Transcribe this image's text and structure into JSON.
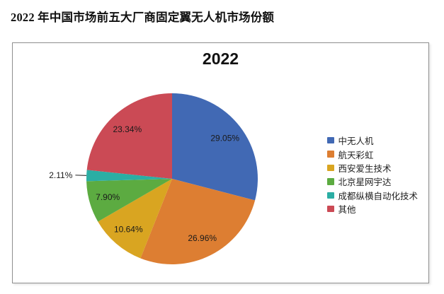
{
  "page": {
    "title": "2022 年中国市场前五大厂商固定翼无人机市场份额"
  },
  "chart_data": {
    "type": "pie",
    "title": "2022",
    "legend_position": "right",
    "value_unit": "%",
    "value_format": "2dp-percent",
    "start_angle_deg": 0,
    "direction": "clockwise",
    "slices": [
      {
        "name": "中无人机",
        "value": 29.05,
        "label": "29.05%",
        "color": "#4169B4"
      },
      {
        "name": "航天彩虹",
        "value": 26.96,
        "label": "26.96%",
        "color": "#DD7E32"
      },
      {
        "name": "西安爱生技术",
        "value": 10.64,
        "label": "10.64%",
        "color": "#D9A521"
      },
      {
        "name": "北京星网宇达",
        "value": 7.9,
        "label": "7.90%",
        "color": "#5CAB41"
      },
      {
        "name": "成都纵横自动化技术",
        "value": 2.11,
        "label": "2.11%",
        "color": "#2BAEA4"
      },
      {
        "name": "其他",
        "value": 23.34,
        "label": "23.34%",
        "color": "#CB4A55"
      }
    ]
  }
}
